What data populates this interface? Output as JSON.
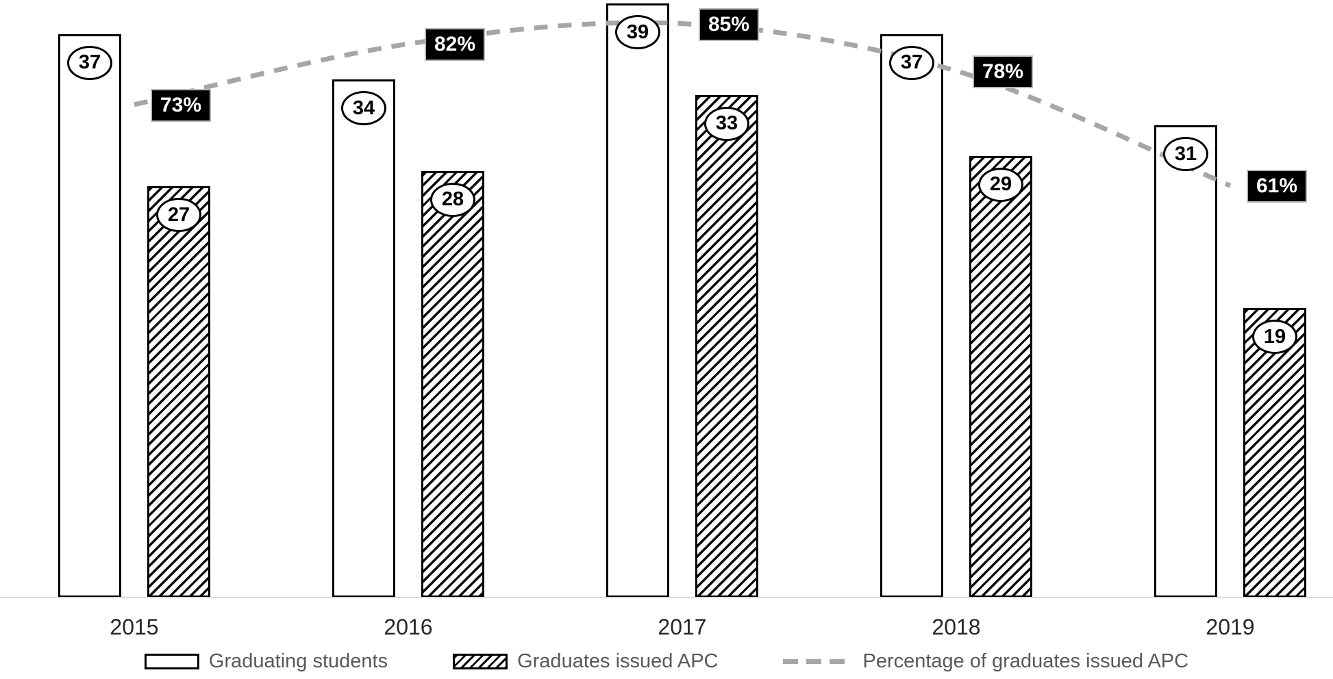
{
  "chart_data": {
    "type": "bar",
    "subtype": "clustered-bar-with-percentage-line",
    "title": "",
    "xlabel": "",
    "ylabel": "",
    "categories": [
      "2015",
      "2016",
      "2017",
      "2018",
      "2019"
    ],
    "series": [
      {
        "name": "Graduating students",
        "type": "bar",
        "fill": "plain",
        "values": [
          37,
          34,
          39,
          37,
          31
        ]
      },
      {
        "name": "Graduates issued APC",
        "type": "bar",
        "fill": "hatched",
        "values": [
          27,
          28,
          33,
          29,
          19
        ]
      },
      {
        "name": "Percentage of graduates issued APC",
        "type": "line",
        "style": "dashed",
        "values": [
          73,
          82,
          85,
          78,
          61
        ],
        "labels": [
          "73%",
          "82%",
          "85%",
          "78%",
          "61%"
        ]
      }
    ],
    "ylim": [
      0,
      39
    ],
    "grid": false,
    "legend_position": "bottom",
    "value_label_style": "circled",
    "percent_label_style": "black-box"
  },
  "colors": {
    "bar_fill": "#ffffff",
    "bar_border": "#000000",
    "hatch": "#0a0a0a",
    "line": "#a6a6a6",
    "percent_label_bg": "#000000",
    "percent_label_text": "#ffffff",
    "axis_line": "#d9d9d9",
    "legend_text": "#595959",
    "xlabel_text": "#262626"
  }
}
